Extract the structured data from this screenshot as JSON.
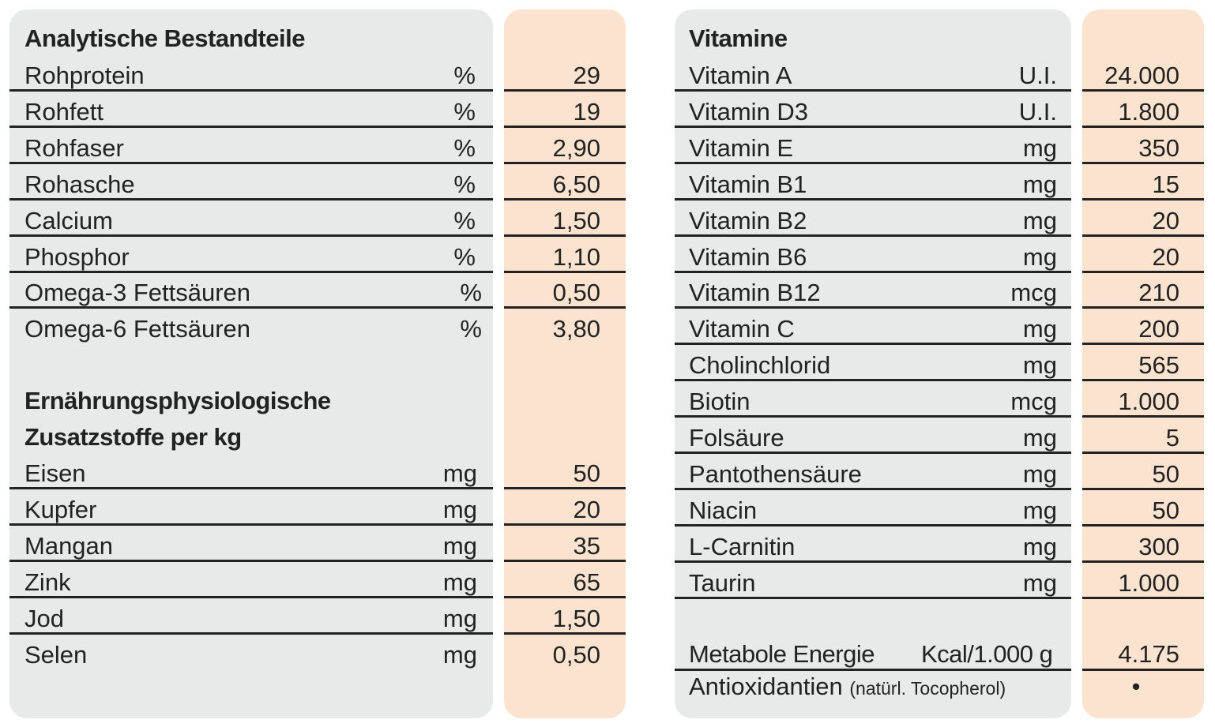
{
  "colors": {
    "panel_gray": "#e8e9e9",
    "panel_peach": "#fce3d0",
    "rule": "#222222"
  },
  "analytic": {
    "heading": "Analytische Bestandteile",
    "rows": [
      {
        "name": "Rohprotein",
        "unit": "%",
        "value": "29"
      },
      {
        "name": "Rohfett",
        "unit": "%",
        "value": "19"
      },
      {
        "name": "Rohfaser",
        "unit": "%",
        "value": "2,90"
      },
      {
        "name": "Rohasche",
        "unit": "%",
        "value": "6,50"
      },
      {
        "name": "Calcium",
        "unit": "%",
        "value": "1,50"
      },
      {
        "name": "Phosphor",
        "unit": "%",
        "value": "1,10"
      },
      {
        "name": "Omega-3 Fettsäuren",
        "unit": "%",
        "value": "0,50"
      },
      {
        "name": "Omega-6 Fettsäuren",
        "unit": "%",
        "value": "3,80"
      }
    ]
  },
  "additives": {
    "heading_line1": "Ernährungsphysiologische",
    "heading_line2": "Zusatzstoffe per kg",
    "rows": [
      {
        "name": "Eisen",
        "unit": "mg",
        "value": "50"
      },
      {
        "name": "Kupfer",
        "unit": "mg",
        "value": "20"
      },
      {
        "name": "Mangan",
        "unit": "mg",
        "value": "35"
      },
      {
        "name": "Zink",
        "unit": "mg",
        "value": "65"
      },
      {
        "name": "Jod",
        "unit": "mg",
        "value": "1,50"
      },
      {
        "name": "Selen",
        "unit": "mg",
        "value": "0,50"
      }
    ]
  },
  "vitamins": {
    "heading": "Vitamine",
    "rows": [
      {
        "name": "Vitamin A",
        "unit": "U.I.",
        "value": "24.000"
      },
      {
        "name": "Vitamin D3",
        "unit": "U.I.",
        "value": "1.800"
      },
      {
        "name": "Vitamin E",
        "unit": "mg",
        "value": "350"
      },
      {
        "name": "Vitamin B1",
        "unit": "mg",
        "value": "15"
      },
      {
        "name": "Vitamin B2",
        "unit": "mg",
        "value": "20"
      },
      {
        "name": "Vitamin B6",
        "unit": "mg",
        "value": "20"
      },
      {
        "name": "Vitamin B12",
        "unit": "mcg",
        "value": "210"
      },
      {
        "name": "Vitamin C",
        "unit": "mg",
        "value": "200"
      },
      {
        "name": "Cholinchlorid",
        "unit": "mg",
        "value": "565"
      },
      {
        "name": "Biotin",
        "unit": "mcg",
        "value": "1.000"
      },
      {
        "name": "Folsäure",
        "unit": "mg",
        "value": "5"
      },
      {
        "name": "Pantothensäure",
        "unit": "mg",
        "value": "50"
      },
      {
        "name": "Niacin",
        "unit": "mg",
        "value": "50"
      },
      {
        "name": "L-Carnitin",
        "unit": "mg",
        "value": "300"
      },
      {
        "name": "Taurin",
        "unit": "mg",
        "value": "1.000"
      }
    ]
  },
  "energy": {
    "name": "Metabole Energie",
    "unit": "Kcal/1.000 g",
    "value": "4.175"
  },
  "antioxidants": {
    "name": "Antioxidantien",
    "note": "(natürl. Tocopherol)",
    "value": "•"
  }
}
